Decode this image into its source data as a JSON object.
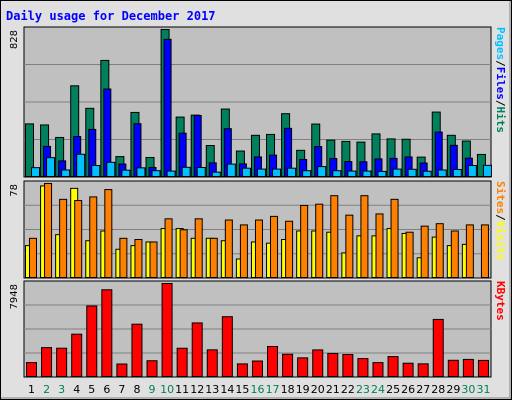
{
  "title": "Daily usage for December 2017",
  "colors": {
    "hits": "#00805C",
    "files": "#0000FF",
    "pages": "#00C0FF",
    "visits": "#FFFF00",
    "sites": "#FF8000",
    "kbytes": "#FF0000",
    "weekday_label": "#000000",
    "weekend_label": "#00805C",
    "plot_bg": "#C0C0C0",
    "frame_bg": "#E0E0E0",
    "title": "#0000FF"
  },
  "chart_data": [
    {
      "type": "bar",
      "name": "hits-files-pages",
      "categories": [
        "1",
        "2",
        "3",
        "4",
        "5",
        "6",
        "7",
        "8",
        "9",
        "10",
        "11",
        "12",
        "13",
        "14",
        "15",
        "16",
        "17",
        "18",
        "19",
        "20",
        "21",
        "22",
        "23",
        "24",
        "25",
        "26",
        "27",
        "28",
        "29",
        "30",
        "31"
      ],
      "weekend": [
        false,
        true,
        true,
        false,
        false,
        false,
        false,
        false,
        true,
        true,
        false,
        false,
        false,
        false,
        false,
        true,
        true,
        false,
        false,
        false,
        false,
        false,
        true,
        true,
        false,
        false,
        false,
        false,
        false,
        true,
        true
      ],
      "ymax_label": "828",
      "ylim": [
        0,
        828
      ],
      "series": [
        {
          "name": "Hits",
          "values": [
            300,
            294,
            224,
            513,
            387,
            655,
            117,
            364,
            112,
            828,
            338,
            349,
            179,
            383,
            148,
            236,
            241,
            357,
            152,
            299,
            209,
            202,
            198,
            244,
            216,
            214,
            114,
            366,
            236,
            204,
            129
          ]
        },
        {
          "name": "Files",
          "values": [
            0,
            174,
            93,
            229,
            269,
            495,
            75,
            301,
            56,
            773,
            248,
            347,
            82,
            273,
            76,
            115,
            125,
            275,
            101,
            173,
            106,
            89,
            88,
            104,
            107,
            115,
            81,
            254,
            180,
            108,
            0
          ]
        },
        {
          "name": "Pages",
          "values": [
            55,
            111,
            42,
            130,
            67,
            85,
            41,
            54,
            38,
            36,
            57,
            56,
            30,
            75,
            52,
            47,
            47,
            52,
            38,
            61,
            38,
            36,
            36,
            34,
            47,
            46,
            35,
            42,
            45,
            67,
            68
          ]
        }
      ]
    },
    {
      "type": "bar",
      "name": "visits-sites",
      "categories": [
        "1",
        "2",
        "3",
        "4",
        "5",
        "6",
        "7",
        "8",
        "9",
        "10",
        "11",
        "12",
        "13",
        "14",
        "15",
        "16",
        "17",
        "18",
        "19",
        "20",
        "21",
        "22",
        "23",
        "24",
        "25",
        "26",
        "27",
        "28",
        "29",
        "30",
        "31"
      ],
      "ymax_label": "78",
      "ylim": [
        0,
        78
      ],
      "series": [
        {
          "name": "Visits",
          "values": [
            27,
            76,
            36,
            74,
            31,
            39,
            24,
            27,
            30,
            41,
            41,
            33,
            33,
            31,
            16,
            30,
            29,
            32,
            39,
            39,
            38,
            21,
            35,
            35,
            41,
            37,
            17,
            34,
            27,
            28,
            0
          ]
        },
        {
          "name": "Sites",
          "values": [
            33,
            78,
            65,
            64,
            67,
            73,
            33,
            32,
            30,
            49,
            40,
            49,
            33,
            48,
            44,
            48,
            51,
            47,
            60,
            61,
            68,
            52,
            68,
            53,
            65,
            38,
            43,
            45,
            39,
            44,
            44
          ]
        }
      ]
    },
    {
      "type": "bar",
      "name": "kbytes",
      "categories": [
        "1",
        "2",
        "3",
        "4",
        "5",
        "6",
        "7",
        "8",
        "9",
        "10",
        "11",
        "12",
        "13",
        "14",
        "15",
        "16",
        "17",
        "18",
        "19",
        "20",
        "21",
        "22",
        "23",
        "24",
        "25",
        "26",
        "27",
        "28",
        "29",
        "30",
        "31"
      ],
      "ymax_label": "7948",
      "ylim": [
        0,
        7948
      ],
      "series": [
        {
          "name": "KBytes",
          "values": [
            1259,
            2526,
            2476,
            3662,
            6043,
            7418,
            1140,
            4508,
            1417,
            7948,
            2473,
            4616,
            2339,
            5142,
            1150,
            1394,
            2622,
            1961,
            1662,
            2333,
            2034,
            1946,
            1601,
            1259,
            1768,
            1208,
            1155,
            4911,
            1454,
            1529,
            1446
          ]
        }
      ]
    }
  ],
  "side_labels": {
    "top": [
      {
        "text": "Pages",
        "color": "#00C0FF"
      },
      {
        "text": "/",
        "color": "#000000"
      },
      {
        "text": "Files",
        "color": "#0000FF"
      },
      {
        "text": "/",
        "color": "#000000"
      },
      {
        "text": "Hits",
        "color": "#00805C"
      }
    ],
    "middle": [
      {
        "text": "Sites",
        "color": "#FF8000"
      },
      {
        "text": "/",
        "color": "#000000"
      },
      {
        "text": "Visits",
        "color": "#FFFF00"
      }
    ],
    "bottom": [
      {
        "text": "KBytes",
        "color": "#FF0000"
      }
    ]
  }
}
